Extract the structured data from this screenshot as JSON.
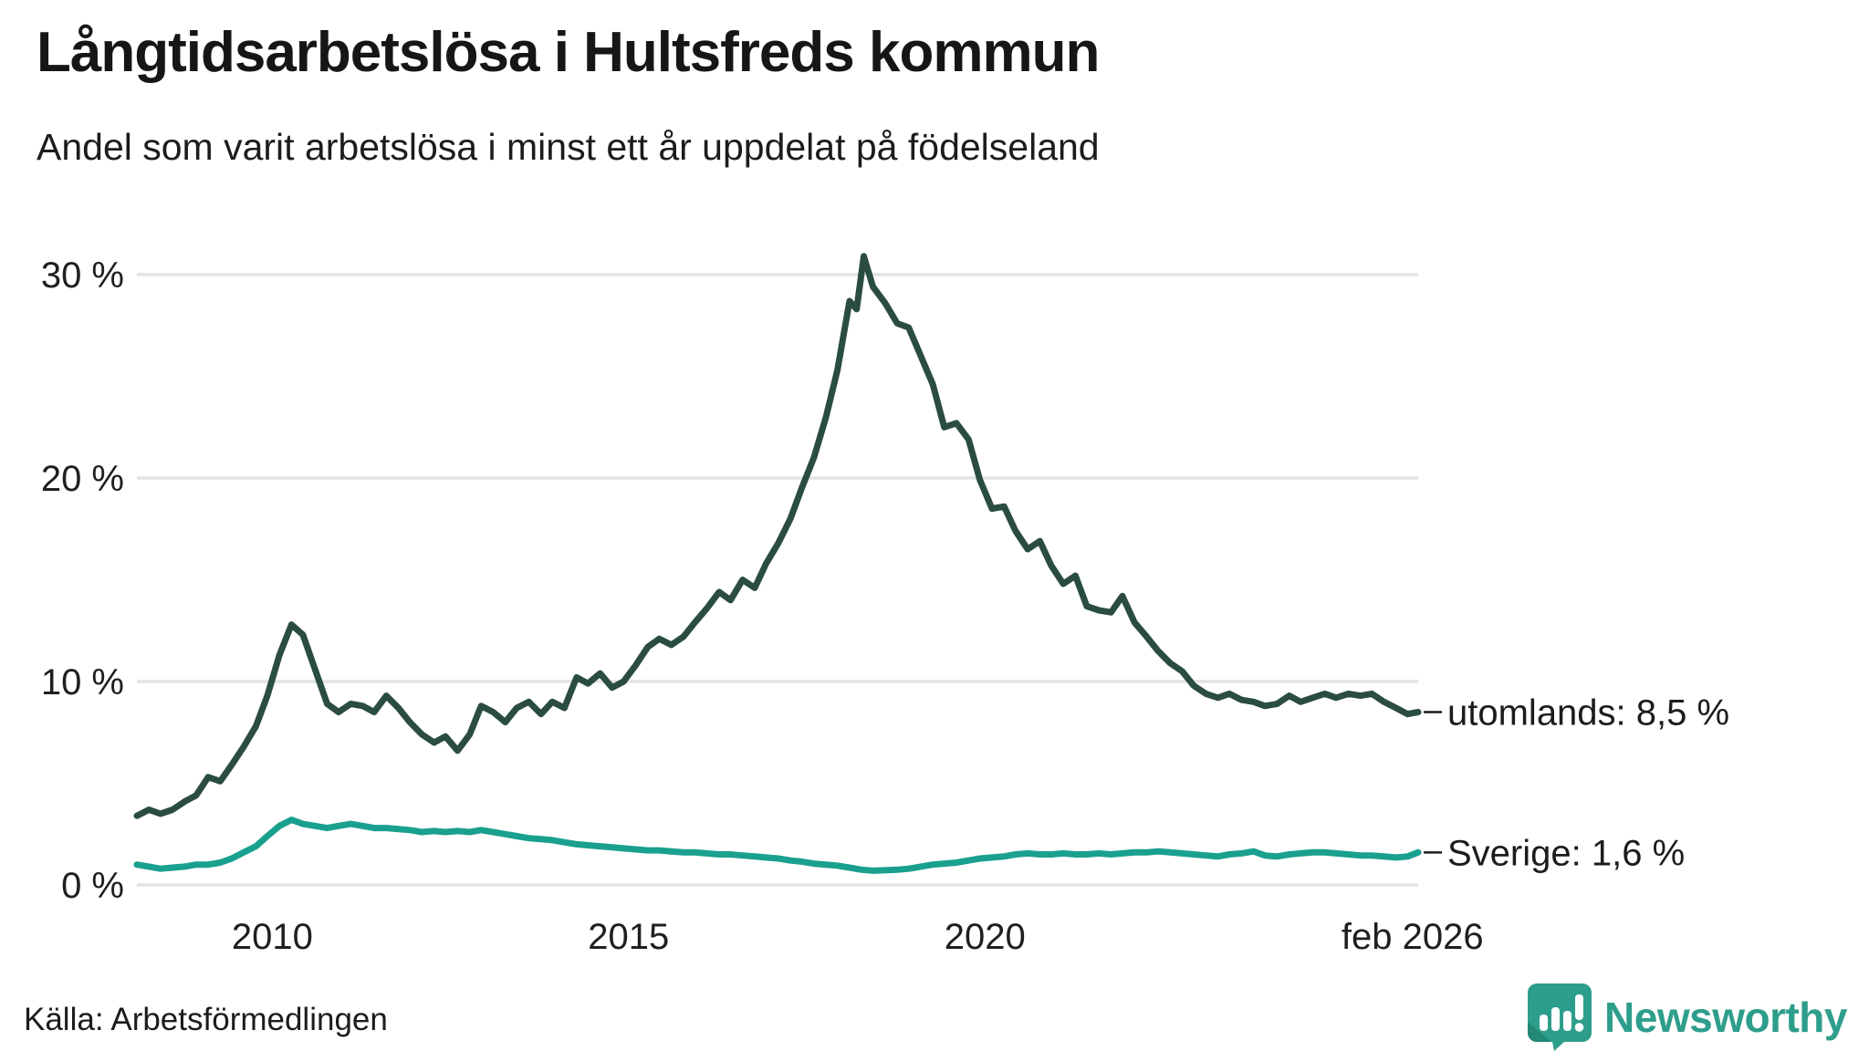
{
  "header": {
    "title": "Långtidsarbetslösa i Hultsfreds kommun",
    "subtitle": "Andel som varit arbetslösa i minst ett år uppdelat på födelseland"
  },
  "footer": {
    "source": "Källa: Arbetsförmedlingen",
    "brand": "Newsworthy",
    "brand_color": "#2e9e8c"
  },
  "colors": {
    "series_foreign": "#2a4c43",
    "series_sweden": "#1aa08f",
    "gridline": "#e4e4e7",
    "text": "#1c1c1c"
  },
  "chart_data": {
    "type": "line",
    "title": "Långtidsarbetslösa i Hultsfreds kommun",
    "subtitle": "Andel som varit arbetslösa i minst ett år uppdelat på födelseland",
    "xlabel": "",
    "ylabel": "",
    "grid": true,
    "x_range": [
      2008.1,
      2026.08
    ],
    "ylim": [
      0,
      33
    ],
    "y_ticks": [
      {
        "value": 0,
        "label": "0 %"
      },
      {
        "value": 10,
        "label": "10 %"
      },
      {
        "value": 20,
        "label": "20 %"
      },
      {
        "value": 30,
        "label": "30 %"
      }
    ],
    "x_ticks": [
      {
        "value": 2010,
        "label": "2010"
      },
      {
        "value": 2015,
        "label": "2015"
      },
      {
        "value": 2020,
        "label": "2020"
      },
      {
        "value": 2026,
        "label": "feb 2026"
      }
    ],
    "legend_position": "end-of-line labels, right side",
    "series": [
      {
        "name": "utomlands",
        "end_label": "utomlands: 8,5 %",
        "end_value_text": "8,5 %",
        "color": "#2a4c43",
        "points": [
          [
            2008.1,
            3.4
          ],
          [
            2008.27,
            3.7
          ],
          [
            2008.43,
            3.5
          ],
          [
            2008.6,
            3.7
          ],
          [
            2008.77,
            4.1
          ],
          [
            2008.93,
            4.4
          ],
          [
            2009.1,
            5.3
          ],
          [
            2009.27,
            5.1
          ],
          [
            2009.43,
            5.9
          ],
          [
            2009.6,
            6.8
          ],
          [
            2009.77,
            7.8
          ],
          [
            2009.93,
            9.3
          ],
          [
            2010.1,
            11.3
          ],
          [
            2010.27,
            12.8
          ],
          [
            2010.43,
            12.3
          ],
          [
            2010.6,
            10.6
          ],
          [
            2010.77,
            8.9
          ],
          [
            2010.93,
            8.5
          ],
          [
            2011.1,
            8.9
          ],
          [
            2011.27,
            8.8
          ],
          [
            2011.43,
            8.5
          ],
          [
            2011.6,
            9.3
          ],
          [
            2011.77,
            8.7
          ],
          [
            2011.93,
            8.0
          ],
          [
            2012.1,
            7.4
          ],
          [
            2012.27,
            7.0
          ],
          [
            2012.43,
            7.3
          ],
          [
            2012.6,
            6.6
          ],
          [
            2012.77,
            7.4
          ],
          [
            2012.93,
            8.8
          ],
          [
            2013.1,
            8.5
          ],
          [
            2013.27,
            8.0
          ],
          [
            2013.43,
            8.7
          ],
          [
            2013.6,
            9.0
          ],
          [
            2013.77,
            8.4
          ],
          [
            2013.93,
            9.0
          ],
          [
            2014.1,
            8.7
          ],
          [
            2014.27,
            10.2
          ],
          [
            2014.43,
            9.9
          ],
          [
            2014.6,
            10.4
          ],
          [
            2014.77,
            9.7
          ],
          [
            2014.93,
            10.0
          ],
          [
            2015.1,
            10.8
          ],
          [
            2015.27,
            11.7
          ],
          [
            2015.43,
            12.1
          ],
          [
            2015.6,
            11.8
          ],
          [
            2015.77,
            12.2
          ],
          [
            2015.93,
            12.9
          ],
          [
            2016.1,
            13.6
          ],
          [
            2016.27,
            14.4
          ],
          [
            2016.43,
            14.0
          ],
          [
            2016.6,
            15.0
          ],
          [
            2016.77,
            14.6
          ],
          [
            2016.93,
            15.8
          ],
          [
            2017.1,
            16.8
          ],
          [
            2017.27,
            18.0
          ],
          [
            2017.43,
            19.5
          ],
          [
            2017.6,
            21.0
          ],
          [
            2017.77,
            23.0
          ],
          [
            2017.93,
            25.3
          ],
          [
            2018.1,
            28.7
          ],
          [
            2018.2,
            28.3
          ],
          [
            2018.3,
            30.9
          ],
          [
            2018.43,
            29.4
          ],
          [
            2018.6,
            28.6
          ],
          [
            2018.77,
            27.6
          ],
          [
            2018.93,
            27.4
          ],
          [
            2019.1,
            26.0
          ],
          [
            2019.27,
            24.6
          ],
          [
            2019.43,
            22.5
          ],
          [
            2019.6,
            22.7
          ],
          [
            2019.77,
            21.9
          ],
          [
            2019.93,
            19.9
          ],
          [
            2020.1,
            18.5
          ],
          [
            2020.27,
            18.6
          ],
          [
            2020.43,
            17.4
          ],
          [
            2020.6,
            16.5
          ],
          [
            2020.77,
            16.9
          ],
          [
            2020.93,
            15.7
          ],
          [
            2021.1,
            14.8
          ],
          [
            2021.27,
            15.2
          ],
          [
            2021.43,
            13.7
          ],
          [
            2021.6,
            13.5
          ],
          [
            2021.77,
            13.4
          ],
          [
            2021.93,
            14.2
          ],
          [
            2022.1,
            12.9
          ],
          [
            2022.27,
            12.2
          ],
          [
            2022.43,
            11.5
          ],
          [
            2022.6,
            10.9
          ],
          [
            2022.77,
            10.5
          ],
          [
            2022.93,
            9.8
          ],
          [
            2023.1,
            9.4
          ],
          [
            2023.27,
            9.2
          ],
          [
            2023.43,
            9.4
          ],
          [
            2023.6,
            9.1
          ],
          [
            2023.77,
            9.0
          ],
          [
            2023.93,
            8.8
          ],
          [
            2024.1,
            8.9
          ],
          [
            2024.27,
            9.3
          ],
          [
            2024.43,
            9.0
          ],
          [
            2024.6,
            9.2
          ],
          [
            2024.77,
            9.4
          ],
          [
            2024.93,
            9.2
          ],
          [
            2025.1,
            9.4
          ],
          [
            2025.27,
            9.3
          ],
          [
            2025.43,
            9.4
          ],
          [
            2025.6,
            9.0
          ],
          [
            2025.77,
            8.7
          ],
          [
            2025.93,
            8.4
          ],
          [
            2026.08,
            8.5
          ]
        ]
      },
      {
        "name": "Sverige",
        "end_label": "Sverige: 1,6 %",
        "end_value_text": "1,6 %",
        "color": "#1aa08f",
        "points": [
          [
            2008.1,
            1.0
          ],
          [
            2008.27,
            0.9
          ],
          [
            2008.43,
            0.8
          ],
          [
            2008.6,
            0.85
          ],
          [
            2008.77,
            0.9
          ],
          [
            2008.93,
            1.0
          ],
          [
            2009.1,
            1.0
          ],
          [
            2009.27,
            1.1
          ],
          [
            2009.43,
            1.3
          ],
          [
            2009.6,
            1.6
          ],
          [
            2009.77,
            1.9
          ],
          [
            2009.93,
            2.4
          ],
          [
            2010.1,
            2.9
          ],
          [
            2010.27,
            3.2
          ],
          [
            2010.43,
            3.0
          ],
          [
            2010.6,
            2.9
          ],
          [
            2010.77,
            2.8
          ],
          [
            2010.93,
            2.9
          ],
          [
            2011.1,
            3.0
          ],
          [
            2011.27,
            2.9
          ],
          [
            2011.43,
            2.8
          ],
          [
            2011.6,
            2.8
          ],
          [
            2011.77,
            2.75
          ],
          [
            2011.93,
            2.7
          ],
          [
            2012.1,
            2.6
          ],
          [
            2012.27,
            2.65
          ],
          [
            2012.43,
            2.6
          ],
          [
            2012.6,
            2.65
          ],
          [
            2012.77,
            2.6
          ],
          [
            2012.93,
            2.7
          ],
          [
            2013.1,
            2.6
          ],
          [
            2013.27,
            2.5
          ],
          [
            2013.43,
            2.4
          ],
          [
            2013.6,
            2.3
          ],
          [
            2013.77,
            2.25
          ],
          [
            2013.93,
            2.2
          ],
          [
            2014.1,
            2.1
          ],
          [
            2014.27,
            2.0
          ],
          [
            2014.43,
            1.95
          ],
          [
            2014.6,
            1.9
          ],
          [
            2014.77,
            1.85
          ],
          [
            2014.93,
            1.8
          ],
          [
            2015.1,
            1.75
          ],
          [
            2015.27,
            1.7
          ],
          [
            2015.43,
            1.7
          ],
          [
            2015.6,
            1.65
          ],
          [
            2015.77,
            1.6
          ],
          [
            2015.93,
            1.6
          ],
          [
            2016.1,
            1.55
          ],
          [
            2016.27,
            1.5
          ],
          [
            2016.43,
            1.5
          ],
          [
            2016.6,
            1.45
          ],
          [
            2016.77,
            1.4
          ],
          [
            2016.93,
            1.35
          ],
          [
            2017.1,
            1.3
          ],
          [
            2017.27,
            1.2
          ],
          [
            2017.43,
            1.15
          ],
          [
            2017.6,
            1.05
          ],
          [
            2017.77,
            1.0
          ],
          [
            2017.93,
            0.95
          ],
          [
            2018.1,
            0.85
          ],
          [
            2018.27,
            0.75
          ],
          [
            2018.43,
            0.7
          ],
          [
            2018.6,
            0.72
          ],
          [
            2018.77,
            0.75
          ],
          [
            2018.93,
            0.8
          ],
          [
            2019.1,
            0.9
          ],
          [
            2019.27,
            1.0
          ],
          [
            2019.43,
            1.05
          ],
          [
            2019.6,
            1.1
          ],
          [
            2019.77,
            1.2
          ],
          [
            2019.93,
            1.3
          ],
          [
            2020.1,
            1.35
          ],
          [
            2020.27,
            1.4
          ],
          [
            2020.43,
            1.5
          ],
          [
            2020.6,
            1.55
          ],
          [
            2020.77,
            1.5
          ],
          [
            2020.93,
            1.5
          ],
          [
            2021.1,
            1.55
          ],
          [
            2021.27,
            1.5
          ],
          [
            2021.43,
            1.5
          ],
          [
            2021.6,
            1.55
          ],
          [
            2021.77,
            1.5
          ],
          [
            2021.93,
            1.55
          ],
          [
            2022.1,
            1.6
          ],
          [
            2022.27,
            1.6
          ],
          [
            2022.43,
            1.65
          ],
          [
            2022.6,
            1.6
          ],
          [
            2022.77,
            1.55
          ],
          [
            2022.93,
            1.5
          ],
          [
            2023.1,
            1.45
          ],
          [
            2023.27,
            1.4
          ],
          [
            2023.43,
            1.5
          ],
          [
            2023.6,
            1.55
          ],
          [
            2023.77,
            1.65
          ],
          [
            2023.93,
            1.45
          ],
          [
            2024.1,
            1.4
          ],
          [
            2024.27,
            1.5
          ],
          [
            2024.43,
            1.55
          ],
          [
            2024.6,
            1.6
          ],
          [
            2024.77,
            1.6
          ],
          [
            2024.93,
            1.55
          ],
          [
            2025.1,
            1.5
          ],
          [
            2025.27,
            1.45
          ],
          [
            2025.43,
            1.45
          ],
          [
            2025.6,
            1.4
          ],
          [
            2025.77,
            1.35
          ],
          [
            2025.93,
            1.4
          ],
          [
            2026.08,
            1.6
          ]
        ]
      }
    ]
  }
}
